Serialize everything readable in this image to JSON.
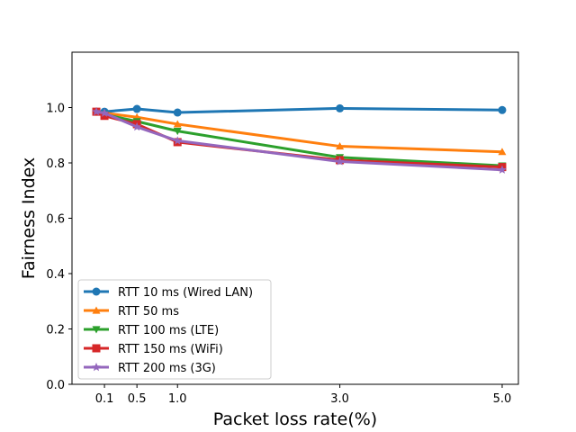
{
  "chart_data": {
    "type": "line",
    "title": "",
    "xlabel": "Packet loss rate(%)",
    "ylabel": "Fairness Index",
    "xlim": [
      -0.3,
      5.2
    ],
    "ylim": [
      0.0,
      1.2
    ],
    "xticks": [
      0.1,
      0.5,
      1.0,
      3.0,
      5.0
    ],
    "xtick_labels": [
      "0.1",
      "0.5",
      "1.0",
      "3.0",
      "5.0"
    ],
    "yticks": [
      0.0,
      0.2,
      0.4,
      0.6,
      0.8,
      1.0
    ],
    "ytick_labels": [
      "0.0",
      "0.2",
      "0.4",
      "0.6",
      "0.8",
      "1.0"
    ],
    "grid": false,
    "legend_position": "lower-left",
    "x": [
      0.0,
      0.1,
      0.5,
      1.0,
      3.0,
      5.0
    ],
    "series": [
      {
        "name": "RTT 10 ms (Wired LAN)",
        "color": "#1f77b4",
        "marker": "circle",
        "values": [
          0.985,
          0.985,
          0.995,
          0.982,
          0.997,
          0.991
        ]
      },
      {
        "name": "RTT 50 ms",
        "color": "#ff7f0e",
        "marker": "triangle-up",
        "values": [
          0.985,
          0.98,
          0.965,
          0.94,
          0.86,
          0.84
        ]
      },
      {
        "name": "RTT 100 ms (LTE)",
        "color": "#2ca02c",
        "marker": "triangle-down",
        "values": [
          0.985,
          0.975,
          0.95,
          0.915,
          0.82,
          0.79
        ]
      },
      {
        "name": "RTT 150 ms (WiFi)",
        "color": "#d62728",
        "marker": "square",
        "values": [
          0.985,
          0.97,
          0.94,
          0.875,
          0.81,
          0.785
        ]
      },
      {
        "name": "RTT 200 ms (3G)",
        "color": "#9467bd",
        "marker": "star",
        "values": [
          0.985,
          0.98,
          0.93,
          0.88,
          0.805,
          0.775
        ]
      }
    ]
  }
}
